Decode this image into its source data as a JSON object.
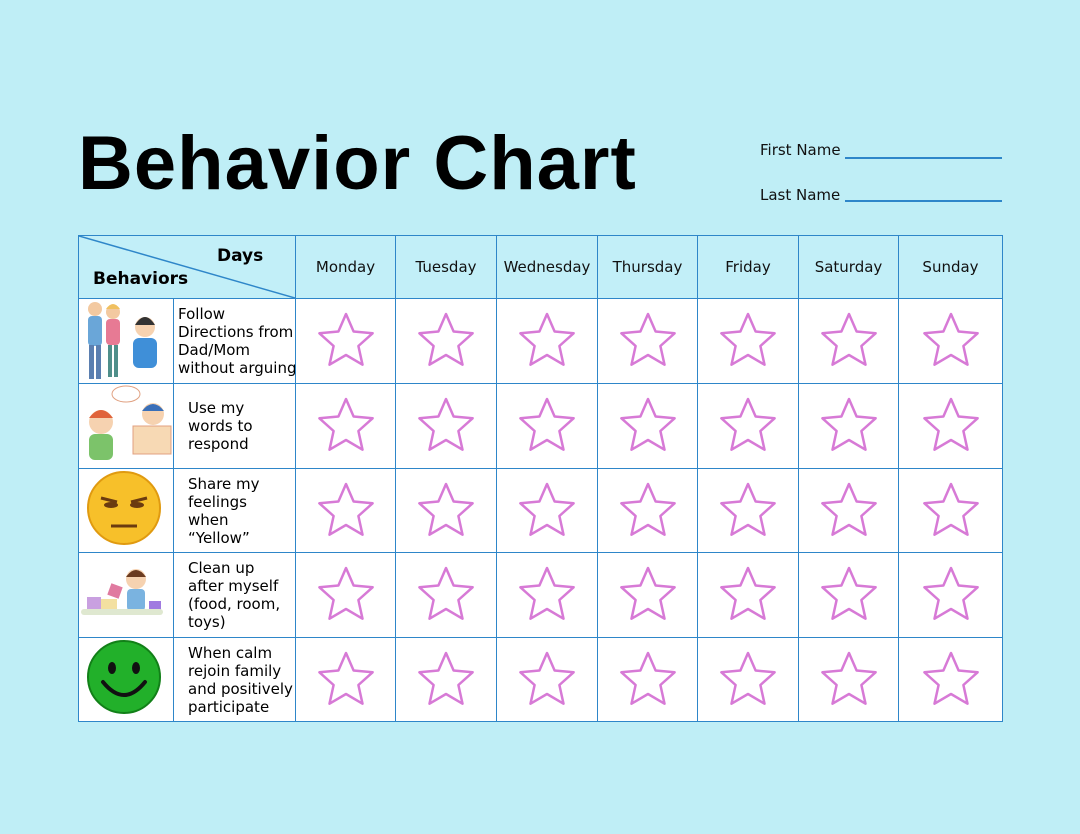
{
  "title": "Behavior Chart",
  "fields": [
    "First Name",
    "Last Name"
  ],
  "table": {
    "corner": {
      "top": "Days",
      "bottom": "Behaviors"
    },
    "days": [
      "Monday",
      "Tuesday",
      "Wednesday",
      "Thursday",
      "Friday",
      "Saturday",
      "Sunday"
    ],
    "behaviors": [
      [
        "Follow",
        "Directions from",
        "Dad/Mom",
        "without arguing"
      ],
      [
        "Use my",
        "words to",
        "respond"
      ],
      [
        "Share my",
        "feelings",
        "when",
        "“Yellow”"
      ],
      [
        "Clean up",
        "after myself",
        "(food, room,",
        "toys)"
      ],
      [
        "When calm",
        "rejoin family",
        "and positively",
        "participate"
      ]
    ]
  }
}
